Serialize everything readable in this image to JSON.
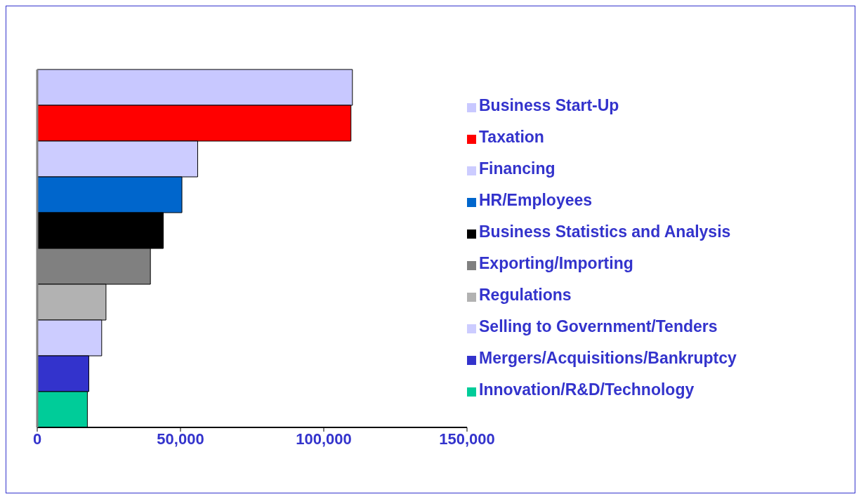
{
  "chart_data": {
    "type": "bar",
    "orientation": "horizontal",
    "categories": [
      null
    ],
    "series": [
      {
        "name": "Business Start-Up",
        "color": "#c8c8ff",
        "values": [
          110000
        ]
      },
      {
        "name": "Taxation",
        "color": "#ff0000",
        "values": [
          109500
        ]
      },
      {
        "name": "Financing",
        "color": "#ccccff",
        "values": [
          56000
        ]
      },
      {
        "name": "HR/Employees",
        "color": "#0066cc",
        "values": [
          50500
        ]
      },
      {
        "name": "Business Statistics and Analysis",
        "color": "#000000",
        "values": [
          44000
        ]
      },
      {
        "name": "Exporting/Importing",
        "color": "#808080",
        "values": [
          39500
        ]
      },
      {
        "name": "Regulations",
        "color": "#b2b2b2",
        "values": [
          24000
        ]
      },
      {
        "name": "Selling to Government/Tenders",
        "color": "#ccccff",
        "values": [
          22500
        ]
      },
      {
        "name": "Mergers/Acquisitions/Bankruptcy",
        "color": "#3333cc",
        "values": [
          18000
        ]
      },
      {
        "name": "Innovation/R&D/Technology",
        "color": "#00cc99",
        "values": [
          17500
        ]
      }
    ],
    "xlim": [
      0,
      150000
    ],
    "xticks": [
      0,
      {
        "value": 50000,
        "label": "50,000"
      },
      {
        "value": 100000,
        "label": "100,000"
      },
      {
        "value": 150000,
        "label": "150,000"
      }
    ],
    "grid": false,
    "legend": "right"
  }
}
